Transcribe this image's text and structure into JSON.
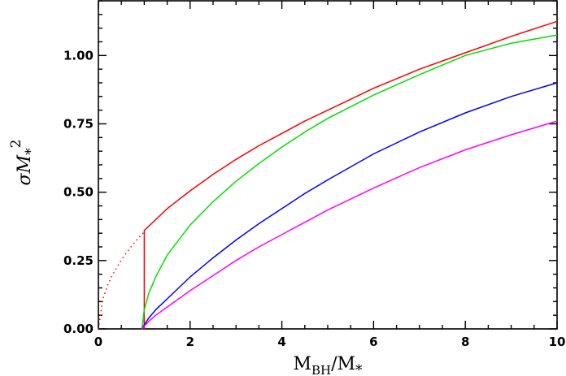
{
  "chart_data": {
    "type": "line",
    "title": "",
    "xlabel": {
      "base": "M",
      "sub": "BH",
      "mid": "/M",
      "sub2": "*"
    },
    "ylabel": {
      "pre": "σM",
      "sub": "*",
      "sup": "2"
    },
    "xlim": [
      0,
      10
    ],
    "ylim": [
      0,
      1.2
    ],
    "xticks": [
      0,
      2,
      4,
      6,
      8,
      10
    ],
    "xtick_labels": [
      "0",
      "2",
      "4",
      "6",
      "8",
      "10"
    ],
    "yticks": [
      0,
      0.25,
      0.5,
      0.75,
      1.0
    ],
    "ytick_labels": [
      "0.00",
      "0.25",
      "0.50",
      "0.75",
      "1.00"
    ],
    "grid": false,
    "legend": false,
    "series": [
      {
        "color": "#ff0000",
        "style": "dotted",
        "x": [
          0.0,
          0.1,
          0.2,
          0.3,
          0.4,
          0.5,
          0.6,
          0.7,
          0.8,
          0.9,
          1.0
        ],
        "y": [
          0.0,
          0.11,
          0.16,
          0.195,
          0.225,
          0.252,
          0.276,
          0.298,
          0.318,
          0.337,
          0.355
        ]
      },
      {
        "color": "#ff0000",
        "style": "solid",
        "x": [
          1.0,
          1.0,
          1.0,
          1.5,
          2,
          2.5,
          3,
          3.5,
          4,
          4.5,
          5,
          6,
          7,
          8,
          9,
          10
        ],
        "y": [
          0.0,
          0.0,
          0.36,
          0.44,
          0.505,
          0.565,
          0.62,
          0.67,
          0.715,
          0.76,
          0.8,
          0.88,
          0.95,
          1.01,
          1.07,
          1.125
        ]
      },
      {
        "color": "#00e000",
        "style": "solid",
        "x": [
          0.95,
          1.0,
          1.1,
          1.25,
          1.5,
          2,
          2.5,
          3,
          3.5,
          4,
          4.5,
          5,
          6,
          7,
          8,
          9,
          10
        ],
        "y": [
          0.0,
          0.07,
          0.13,
          0.19,
          0.27,
          0.38,
          0.465,
          0.54,
          0.605,
          0.665,
          0.72,
          0.77,
          0.855,
          0.93,
          1.0,
          1.045,
          1.075
        ]
      },
      {
        "color": "#0000ff",
        "style": "solid",
        "x": [
          0.95,
          1.0,
          1.1,
          1.25,
          1.5,
          2,
          2.5,
          3,
          3.5,
          4,
          4.5,
          5,
          6,
          7,
          8,
          9,
          10
        ],
        "y": [
          0.0,
          0.015,
          0.04,
          0.07,
          0.11,
          0.19,
          0.26,
          0.325,
          0.385,
          0.44,
          0.495,
          0.545,
          0.64,
          0.72,
          0.79,
          0.85,
          0.9
        ]
      },
      {
        "color": "#ff00ff",
        "style": "solid",
        "x": [
          0.95,
          1.0,
          1.1,
          1.25,
          1.5,
          2,
          2.5,
          3,
          3.5,
          4,
          4.5,
          5,
          6,
          7,
          8,
          9,
          10
        ],
        "y": [
          0.0,
          0.01,
          0.028,
          0.05,
          0.08,
          0.14,
          0.195,
          0.25,
          0.3,
          0.345,
          0.39,
          0.435,
          0.515,
          0.59,
          0.655,
          0.71,
          0.76
        ]
      }
    ]
  }
}
